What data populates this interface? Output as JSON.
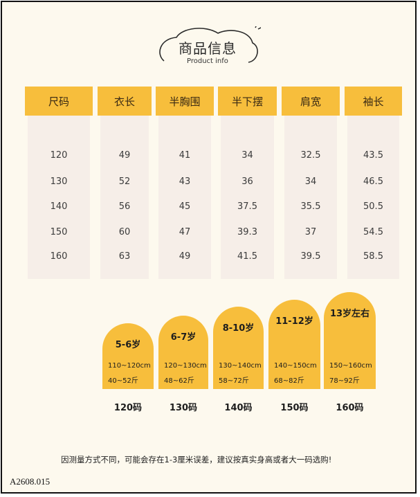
{
  "header": {
    "title": "商品信息",
    "subtitle": "Product info"
  },
  "table": {
    "headers": [
      "尺码",
      "衣长",
      "半胸围",
      "半下摆",
      "肩宽",
      "袖长"
    ],
    "rows": [
      [
        "120",
        "49",
        "41",
        "34",
        "32.5",
        "43.5"
      ],
      [
        "130",
        "52",
        "43",
        "36",
        "34",
        "46.5"
      ],
      [
        "140",
        "56",
        "45",
        "37.5",
        "35.5",
        "50.5"
      ],
      [
        "150",
        "60",
        "47",
        "39.3",
        "37",
        "54.5"
      ],
      [
        "160",
        "63",
        "49",
        "41.5",
        "39.5",
        "58.5"
      ]
    ]
  },
  "age_guide": [
    {
      "age": "5-6岁",
      "height": "110~120cm",
      "weight": "40~52斤",
      "size": "120码"
    },
    {
      "age": "6-7岁",
      "height": "120~130cm",
      "weight": "48~62斤",
      "size": "130码"
    },
    {
      "age": "8-10岁",
      "height": "130~140cm",
      "weight": "58~72斤",
      "size": "140码"
    },
    {
      "age": "11-12岁",
      "height": "140~150cm",
      "weight": "68~82斤",
      "size": "150码"
    },
    {
      "age": "13岁左右",
      "height": "150~160cm",
      "weight": "78~92斤",
      "size": "160码"
    }
  ],
  "note": "因测量方式不同，可能会存在1-3厘米误差，建议按真实身高或者大一码选购!",
  "product_code": "A2608.015",
  "colors": {
    "accent": "#f7be3c",
    "column_bg": "#f6eee8",
    "page_bg": "#fdf9ee"
  }
}
